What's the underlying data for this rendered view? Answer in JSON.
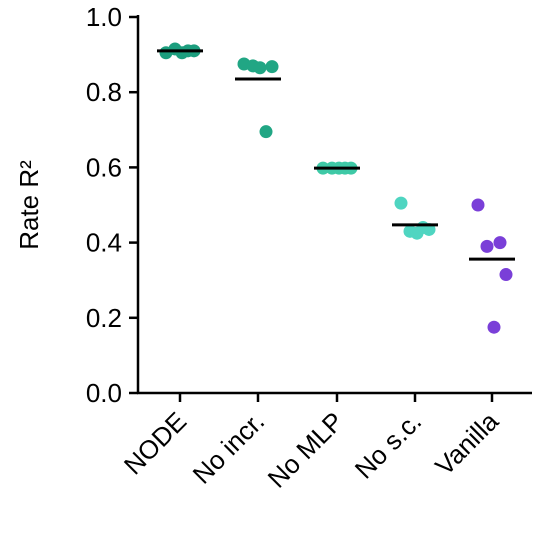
{
  "chart_data": {
    "type": "strip",
    "ylabel": "Rate R²",
    "categories": [
      "NODE",
      "No incr.",
      "No MLP",
      "No s.c.",
      "Vanilla"
    ],
    "colors": [
      "#1c9e7e",
      "#21a684",
      "#3ec9a6",
      "#4fd5c1",
      "#7a3fd8"
    ],
    "values": [
      [
        0.905,
        0.91,
        0.915,
        0.91,
        0.905
      ],
      [
        0.875,
        0.695,
        0.87,
        0.868,
        0.865
      ],
      [
        0.598,
        0.598,
        0.598,
        0.598,
        0.598
      ],
      [
        0.505,
        0.44,
        0.43,
        0.435,
        0.425
      ],
      [
        0.5,
        0.4,
        0.39,
        0.315,
        0.175
      ]
    ],
    "means": [
      0.91,
      0.835,
      0.598,
      0.447,
      0.356
    ],
    "ylim": [
      0,
      1
    ],
    "yticks": [
      {
        "value": 0,
        "label": "0.0"
      },
      0.2,
      0.4,
      0.6,
      0.8,
      {
        "value": 1,
        "label": "1.0"
      }
    ]
  }
}
